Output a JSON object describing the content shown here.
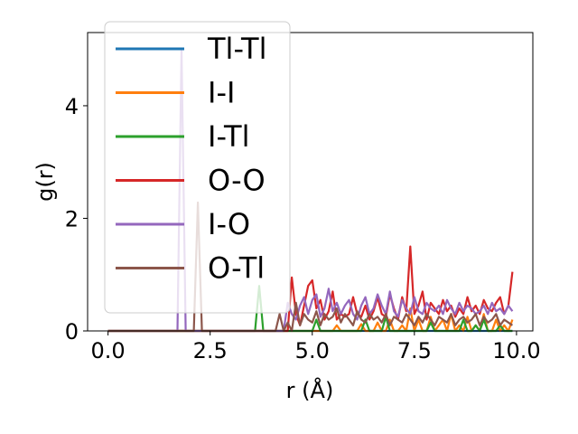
{
  "chart_data": {
    "type": "line",
    "title": "",
    "xlabel": "r (Å)",
    "ylabel": "g(r)",
    "xlim": [
      -0.5,
      10.4
    ],
    "ylim": [
      0,
      5.3
    ],
    "xticks": [
      "0.0",
      "2.5",
      "5.0",
      "7.5",
      "10.0"
    ],
    "yticks": [
      "0",
      "2",
      "4"
    ],
    "legend_position": "top-left",
    "grid": false,
    "x": [
      0.0,
      0.1,
      0.2,
      0.3,
      0.4,
      0.5,
      0.6,
      0.7,
      0.8,
      0.9,
      1.0,
      1.1,
      1.2,
      1.3,
      1.4,
      1.5,
      1.6,
      1.7,
      1.8,
      1.9,
      2.0,
      2.1,
      2.2,
      2.3,
      2.4,
      2.5,
      2.6,
      2.7,
      2.8,
      2.9,
      3.0,
      3.1,
      3.2,
      3.3,
      3.4,
      3.5,
      3.6,
      3.7,
      3.8,
      3.9,
      4.0,
      4.1,
      4.2,
      4.3,
      4.4,
      4.5,
      4.6,
      4.7,
      4.8,
      4.9,
      5.0,
      5.1,
      5.2,
      5.3,
      5.4,
      5.5,
      5.6,
      5.7,
      5.8,
      5.9,
      6.0,
      6.1,
      6.2,
      6.3,
      6.4,
      6.5,
      6.6,
      6.7,
      6.8,
      6.9,
      7.0,
      7.1,
      7.2,
      7.3,
      7.4,
      7.5,
      7.6,
      7.7,
      7.8,
      7.9,
      8.0,
      8.1,
      8.2,
      8.3,
      8.4,
      8.5,
      8.6,
      8.7,
      8.8,
      8.9,
      9.0,
      9.1,
      9.2,
      9.3,
      9.4,
      9.5,
      9.6,
      9.7,
      9.8,
      9.9
    ],
    "series": [
      {
        "name": "Tl-Tl",
        "color": "#1f77b4",
        "values": [
          0,
          0,
          0,
          0,
          0,
          0,
          0,
          0,
          0,
          0,
          0,
          0,
          0,
          0,
          0,
          0,
          0,
          0,
          0,
          0,
          0,
          0,
          0,
          0,
          0,
          0,
          0,
          0,
          0,
          0,
          0,
          0,
          0,
          0,
          0,
          0,
          0,
          0,
          0,
          0,
          0,
          0,
          0,
          0,
          0,
          0,
          0,
          0,
          0,
          0,
          0,
          0,
          0,
          0,
          0,
          0,
          0,
          0,
          0,
          0,
          0,
          0,
          0,
          0,
          0,
          0,
          0,
          0,
          0,
          0,
          0,
          0,
          0,
          0,
          0,
          0,
          0,
          0,
          0,
          0,
          0,
          0,
          0,
          0,
          0,
          0,
          0,
          0,
          0,
          0,
          0,
          0,
          0,
          0,
          0,
          0,
          0,
          0,
          0,
          0
        ]
      },
      {
        "name": "I-I",
        "color": "#ff7f0e",
        "values": [
          0,
          0,
          0,
          0,
          0,
          0,
          0,
          0,
          0,
          0,
          0,
          0,
          0,
          0,
          0,
          0,
          0,
          0,
          0,
          0,
          0,
          0,
          0,
          0,
          0,
          0,
          0,
          0,
          0,
          0,
          0,
          0,
          0,
          0,
          0,
          0,
          0,
          0,
          0,
          0,
          0,
          0,
          0,
          0,
          0,
          0,
          0,
          0,
          0,
          0,
          0,
          0,
          0,
          0,
          0,
          0,
          0.1,
          0,
          0,
          0,
          0,
          0,
          0.12,
          0,
          0,
          0,
          0.15,
          0,
          0,
          0.2,
          0,
          0,
          0.1,
          0,
          0.4,
          0,
          0.2,
          0,
          0,
          0.25,
          0,
          0.1,
          0.2,
          0,
          0.3,
          0,
          0.1,
          0,
          0.25,
          0,
          0.1,
          0,
          0.3,
          0,
          0,
          0.2,
          0,
          0.1,
          0,
          0.2
        ]
      },
      {
        "name": "I-Tl",
        "color": "#2ca02c",
        "values": [
          0,
          0,
          0,
          0,
          0,
          0,
          0,
          0,
          0,
          0,
          0,
          0,
          0,
          0,
          0,
          0,
          0,
          0,
          0,
          0,
          0,
          0,
          0,
          0,
          0,
          0,
          0,
          0,
          0,
          0,
          0,
          0,
          0,
          0,
          0,
          0,
          0,
          0.8,
          0,
          0,
          0,
          0,
          0,
          0,
          0,
          0,
          0,
          0,
          0,
          0,
          0,
          0.2,
          0,
          0,
          0,
          0,
          0,
          0,
          0,
          0,
          0,
          0,
          0,
          0.2,
          0,
          0,
          0,
          0,
          0.25,
          0,
          0,
          0,
          0,
          0,
          0,
          0,
          0,
          0,
          0,
          0.15,
          0,
          0,
          0,
          0,
          0,
          0,
          0,
          0.2,
          0,
          0,
          0.1,
          0,
          0.2,
          0,
          0,
          0,
          0.1,
          0,
          0,
          0
        ]
      },
      {
        "name": "O-O",
        "color": "#d62728",
        "values": [
          0,
          0,
          0,
          0,
          0,
          0,
          0,
          0,
          0,
          0,
          0,
          0,
          0,
          0,
          0,
          0,
          0,
          0,
          0,
          0,
          0,
          0,
          0,
          0,
          0,
          0,
          0,
          0,
          0,
          0,
          0,
          0,
          0,
          0,
          0,
          0,
          0,
          0,
          0,
          0,
          0,
          0,
          0,
          0,
          0,
          0.95,
          0.3,
          0.1,
          0.45,
          0.8,
          0.9,
          0.4,
          0.55,
          0.2,
          0.35,
          0.7,
          0.2,
          0.3,
          0.25,
          0.3,
          0.6,
          0.3,
          0.25,
          0.45,
          0.2,
          0.35,
          0.6,
          0.3,
          0.25,
          0.65,
          0.4,
          0.2,
          0.6,
          0.35,
          1.5,
          0.3,
          0.45,
          0.7,
          0.2,
          0.5,
          0.4,
          0.3,
          0.55,
          0.35,
          0.45,
          0.25,
          0.4,
          0.3,
          0.6,
          0.35,
          0.45,
          0.3,
          0.55,
          0.4,
          0.35,
          0.5,
          0.6,
          0.3,
          0.45,
          1.05
        ]
      },
      {
        "name": "I-O",
        "color": "#9467bd",
        "values": [
          0,
          0,
          0,
          0,
          0,
          0,
          0,
          0,
          0,
          0,
          0,
          0,
          0,
          0,
          0,
          0,
          0,
          0,
          5.0,
          0,
          0,
          0,
          0,
          0,
          0,
          0,
          0,
          0,
          0,
          0,
          0,
          0,
          0,
          0,
          0,
          0,
          0,
          0,
          0,
          0,
          0,
          0,
          0,
          0,
          0.5,
          0.3,
          0.2,
          0.45,
          0.6,
          0.3,
          0.55,
          0.65,
          0.25,
          0.4,
          0.75,
          0.35,
          0.5,
          0.3,
          0.45,
          0.55,
          0.3,
          0.2,
          0.45,
          0.6,
          0.3,
          0.4,
          0.65,
          0.45,
          0.3,
          0.7,
          0.35,
          0.25,
          0.55,
          0.4,
          0.3,
          0.6,
          0.35,
          0.3,
          0.5,
          0.4,
          0.35,
          0.45,
          0.3,
          0.55,
          0.4,
          0.3,
          0.5,
          0.35,
          0.45,
          0.4,
          0.3,
          0.35,
          0.45,
          0.3,
          0.5,
          0.35,
          0.4,
          0.3,
          0.45,
          0.35
        ]
      },
      {
        "name": "O-Tl",
        "color": "#8c564b",
        "values": [
          0,
          0,
          0,
          0,
          0,
          0,
          0,
          0,
          0,
          0,
          0,
          0,
          0,
          0,
          0,
          0,
          0,
          0,
          0,
          0,
          0,
          0,
          2.28,
          0,
          0,
          0,
          0,
          0,
          0,
          0,
          0,
          0,
          0,
          0,
          0,
          0,
          0,
          0,
          0,
          0,
          0,
          0,
          0.3,
          0,
          0.15,
          0,
          0.5,
          0.1,
          0.3,
          0.2,
          0.15,
          0.35,
          0.1,
          0.3,
          0.2,
          0.25,
          0.4,
          0.15,
          0.3,
          0.2,
          0.1,
          0.35,
          0.2,
          0.15,
          0.3,
          0.2,
          0.25,
          0.15,
          0.3,
          0.1,
          0.25,
          0.2,
          0.15,
          0.3,
          0.2,
          0.1,
          0.25,
          0.15,
          0.3,
          0.2,
          0.1,
          0.25,
          0.2,
          0.15,
          0.3,
          0.1,
          0.2,
          0.25,
          0.15,
          0.2,
          0.3,
          0.1,
          0.25,
          0.15,
          0.2,
          0.3,
          0.1,
          0.2,
          0.15,
          0.1
        ]
      }
    ]
  }
}
